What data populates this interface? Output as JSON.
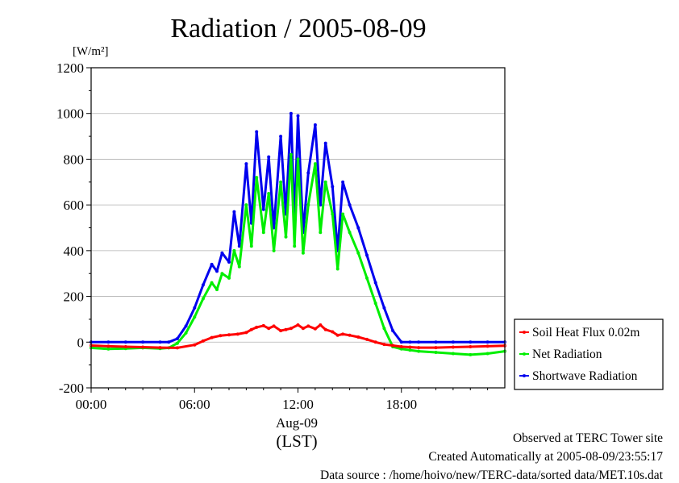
{
  "chart_data": {
    "type": "line",
    "title": "Radiation / 2005-08-09",
    "ylabel": "[W/m²]",
    "ylim": [
      -200,
      1200
    ],
    "yticks": [
      -200,
      0,
      200,
      400,
      600,
      800,
      1000,
      1200
    ],
    "xlim": [
      0,
      24
    ],
    "xticks": [
      {
        "value": 0,
        "label": "00:00"
      },
      {
        "value": 6,
        "label": "06:00"
      },
      {
        "value": 12,
        "label": "12:00"
      },
      {
        "value": 18,
        "label": "18:00"
      }
    ],
    "xsublabel": "Aug-09",
    "xlabel": "(LST)",
    "grid": true,
    "legend_position": "right",
    "series": [
      {
        "name": "Soil Heat Flux 0.02m",
        "color": "#ff0000",
        "x": [
          0,
          1,
          2,
          3,
          4,
          5,
          6,
          6.5,
          7,
          7.5,
          8,
          8.5,
          9,
          9.3,
          9.6,
          10,
          10.3,
          10.6,
          11,
          11.3,
          11.6,
          12,
          12.3,
          12.6,
          13,
          13.3,
          13.6,
          14,
          14.3,
          14.6,
          15,
          15.5,
          16,
          16.5,
          17,
          17.5,
          18,
          18.5,
          19,
          20,
          21,
          22,
          23,
          24
        ],
        "y": [
          -15,
          -18,
          -20,
          -22,
          -24,
          -25,
          -12,
          5,
          20,
          28,
          32,
          35,
          42,
          55,
          65,
          72,
          60,
          70,
          50,
          55,
          60,
          75,
          60,
          70,
          58,
          75,
          55,
          45,
          30,
          35,
          30,
          22,
          12,
          0,
          -10,
          -15,
          -20,
          -22,
          -24,
          -24,
          -22,
          -20,
          -18,
          -16
        ]
      },
      {
        "name": "Net Radiation",
        "color": "#00ee00",
        "x": [
          0,
          1,
          2,
          3,
          4,
          4.5,
          5,
          5.5,
          6,
          6.5,
          7,
          7.3,
          7.6,
          8,
          8.3,
          8.6,
          9,
          9.3,
          9.6,
          10,
          10.3,
          10.6,
          11,
          11.3,
          11.6,
          11.8,
          12,
          12.3,
          12.6,
          13,
          13.3,
          13.6,
          14,
          14.3,
          14.6,
          15,
          15.5,
          16,
          16.5,
          17,
          17.5,
          18,
          18.5,
          19,
          20,
          21,
          22,
          23,
          24
        ],
        "y": [
          -25,
          -30,
          -28,
          -25,
          -28,
          -25,
          -5,
          40,
          110,
          190,
          260,
          230,
          300,
          280,
          400,
          330,
          600,
          420,
          720,
          480,
          650,
          400,
          700,
          460,
          820,
          420,
          800,
          390,
          600,
          780,
          480,
          700,
          560,
          320,
          560,
          480,
          390,
          280,
          170,
          60,
          -20,
          -30,
          -35,
          -40,
          -45,
          -50,
          -55,
          -50,
          -40
        ]
      },
      {
        "name": "Shortwave Radiation",
        "color": "#0000ee",
        "x": [
          0,
          1,
          2,
          3,
          4,
          4.5,
          5,
          5.5,
          6,
          6.5,
          7,
          7.3,
          7.6,
          8,
          8.3,
          8.6,
          9,
          9.3,
          9.6,
          10,
          10.3,
          10.6,
          11,
          11.3,
          11.6,
          11.8,
          12,
          12.3,
          12.6,
          13,
          13.3,
          13.6,
          14,
          14.3,
          14.6,
          15,
          15.5,
          16,
          16.5,
          17,
          17.5,
          18,
          18.5,
          19,
          20,
          21,
          22,
          23,
          24
        ],
        "y": [
          0,
          0,
          0,
          0,
          0,
          0,
          15,
          70,
          150,
          250,
          340,
          310,
          390,
          350,
          570,
          420,
          780,
          520,
          920,
          580,
          810,
          500,
          900,
          560,
          1000,
          520,
          990,
          480,
          740,
          950,
          600,
          870,
          680,
          400,
          700,
          600,
          500,
          380,
          260,
          150,
          50,
          0,
          0,
          0,
          0,
          0,
          0,
          0,
          0
        ]
      }
    ]
  },
  "footer": {
    "line1": "Observed at TERC Tower site",
    "line2": "Created Automatically at 2005-08-09/23:55:17",
    "line3": "Data source : /home/hoivo/new/TERC-data/sorted data/MET.10s.dat"
  }
}
